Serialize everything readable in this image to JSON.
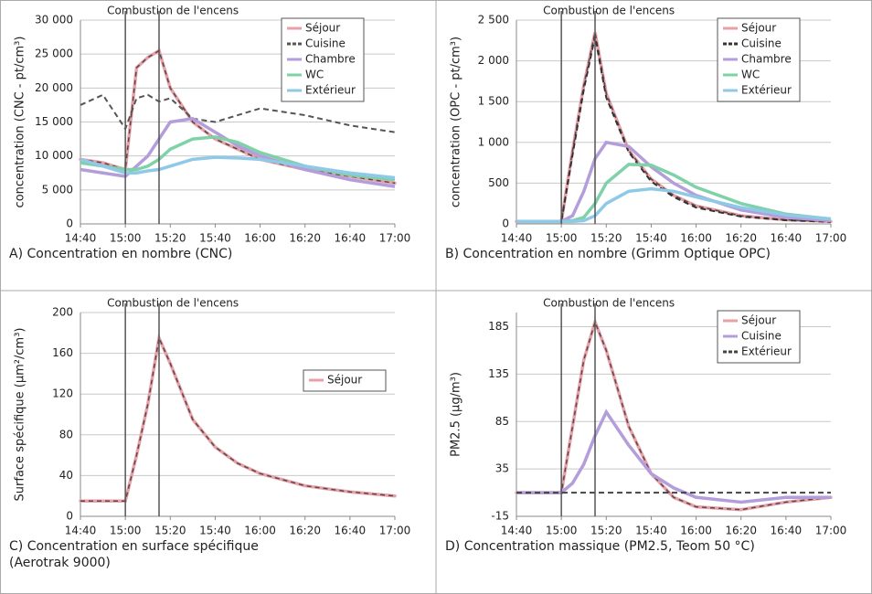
{
  "chart_data": [
    {
      "type": "line",
      "caption": [
        "A) Concentration en nombre (CNC)"
      ],
      "annotation": "Combustion de l'encens",
      "y_label": "concentration (CNC - pt/cm³)",
      "legend": "upper right",
      "grid": true,
      "x": [
        "14:40",
        "14:50",
        "15:00",
        "15:05",
        "15:10",
        "15:15",
        "15:20",
        "15:30",
        "15:40",
        "15:50",
        "16:00",
        "16:20",
        "16:40",
        "17:00"
      ],
      "xlim": [
        "14:40",
        "17:00"
      ],
      "xticks": [
        "14:40",
        "15:00",
        "15:20",
        "15:40",
        "16:00",
        "16:20",
        "16:40",
        "17:00"
      ],
      "ylim": [
        0,
        30000
      ],
      "yticks": [
        0,
        {
          "value": 5000,
          "label": "5 000"
        },
        {
          "value": 10000,
          "label": "10 000"
        },
        {
          "value": 15000,
          "label": "15 000"
        },
        {
          "value": 20000,
          "label": "20 000"
        },
        {
          "value": 25000,
          "label": "25 000"
        },
        {
          "value": 30000,
          "label": "30 000"
        }
      ],
      "vlines": [
        "15:00",
        "15:15"
      ],
      "series": [
        {
          "name": "Séjour",
          "color": "#e8a0a8",
          "style": "dotted",
          "values": [
            9500,
            9000,
            8000,
            23000,
            24500,
            25500,
            20000,
            15000,
            12500,
            11000,
            9500,
            8000,
            7000,
            6000
          ]
        },
        {
          "name": "Cuisine",
          "color": "#555555",
          "style": "dashed",
          "values": [
            17500,
            19000,
            14000,
            18500,
            19000,
            18000,
            18500,
            15500,
            15000,
            16000,
            17000,
            16000,
            14500,
            13500
          ]
        },
        {
          "name": "Chambre",
          "color": "#b39ddb",
          "style": "solid",
          "values": [
            8000,
            7500,
            7000,
            8500,
            10000,
            12500,
            15000,
            15500,
            13500,
            11500,
            10000,
            8000,
            6500,
            5500
          ]
        },
        {
          "name": "WC",
          "color": "#7fd1a8",
          "style": "solid",
          "values": [
            9000,
            8500,
            8000,
            8000,
            8500,
            9500,
            11000,
            12500,
            12800,
            12000,
            10500,
            8500,
            7200,
            6500
          ]
        },
        {
          "name": "Extérieur",
          "color": "#8ec9e8",
          "style": "solid",
          "values": [
            9500,
            8500,
            7500,
            7500,
            7800,
            8000,
            8500,
            9500,
            9800,
            9700,
            9500,
            8500,
            7500,
            6800
          ]
        }
      ]
    },
    {
      "type": "line",
      "caption": [
        "B) Concentration en nombre (Grimm Optique OPC)"
      ],
      "annotation": "Combustion de l'encens",
      "y_label": "concentration (OPC - pt/cm³)",
      "legend": "upper right",
      "grid": true,
      "x": [
        "14:40",
        "14:50",
        "15:00",
        "15:05",
        "15:10",
        "15:15",
        "15:20",
        "15:30",
        "15:40",
        "15:50",
        "16:00",
        "16:20",
        "16:40",
        "17:00"
      ],
      "xlim": [
        "14:40",
        "17:00"
      ],
      "xticks": [
        "14:40",
        "15:00",
        "15:20",
        "15:40",
        "16:00",
        "16:20",
        "16:40",
        "17:00"
      ],
      "ylim": [
        0,
        2500
      ],
      "yticks": [
        0,
        500,
        {
          "value": 1000,
          "label": "1 000"
        },
        {
          "value": 1500,
          "label": "1 500"
        },
        {
          "value": 2000,
          "label": "2 000"
        },
        {
          "value": 2500,
          "label": "2 500"
        }
      ],
      "vlines": [
        "15:00",
        "15:15"
      ],
      "series": [
        {
          "name": "Séjour",
          "color": "#e8a0a8",
          "style": "dotted",
          "values": [
            30,
            30,
            30,
            900,
            1700,
            2350,
            1600,
            900,
            550,
            350,
            220,
            100,
            50,
            30
          ]
        },
        {
          "name": "Cuisine",
          "color": "#333333",
          "style": "dashed",
          "values": [
            30,
            30,
            30,
            850,
            1650,
            2300,
            1550,
            880,
            520,
            330,
            200,
            90,
            45,
            25
          ]
        },
        {
          "name": "Chambre",
          "color": "#b39ddb",
          "style": "solid",
          "values": [
            30,
            30,
            30,
            100,
            400,
            800,
            1000,
            950,
            700,
            500,
            350,
            170,
            80,
            40
          ]
        },
        {
          "name": "WC",
          "color": "#7fd1a8",
          "style": "solid",
          "values": [
            30,
            30,
            30,
            40,
            80,
            250,
            500,
            730,
            720,
            600,
            450,
            250,
            120,
            60
          ]
        },
        {
          "name": "Extérieur",
          "color": "#8ec9e8",
          "style": "solid",
          "values": [
            30,
            30,
            30,
            30,
            40,
            100,
            250,
            400,
            430,
            400,
            330,
            200,
            110,
            60
          ]
        }
      ]
    },
    {
      "type": "line",
      "caption": [
        "C) Concentration en surface spécifique",
        "(Aerotrak 9000)"
      ],
      "annotation": "Combustion de l'encens",
      "y_label": "Surface spécifique (µm²/cm³)",
      "legend": "right",
      "grid": true,
      "x": [
        "14:40",
        "14:50",
        "15:00",
        "15:05",
        "15:10",
        "15:15",
        "15:20",
        "15:30",
        "15:40",
        "15:50",
        "16:00",
        "16:20",
        "16:40",
        "17:00"
      ],
      "xlim": [
        "14:40",
        "17:00"
      ],
      "xticks": [
        "14:40",
        "15:00",
        "15:20",
        "15:40",
        "16:00",
        "16:20",
        "16:40",
        "17:00"
      ],
      "ylim": [
        0,
        200
      ],
      "yticks": [
        0,
        40,
        80,
        120,
        160,
        200
      ],
      "vlines": [
        "15:00",
        "15:15"
      ],
      "series": [
        {
          "name": "Séjour",
          "color": "#e8a0a8",
          "style": "dotted",
          "values": [
            15,
            15,
            15,
            60,
            110,
            175,
            150,
            95,
            68,
            52,
            42,
            30,
            24,
            20
          ]
        }
      ]
    },
    {
      "type": "line",
      "caption": [
        "D) Concentration massique (PM2.5, Teom 50 °C)"
      ],
      "annotation": "Combustion de l'encens",
      "y_label": "PM2.5 (µg/m³)",
      "legend": "upper right",
      "grid": true,
      "x": [
        "14:40",
        "14:50",
        "15:00",
        "15:05",
        "15:10",
        "15:15",
        "15:20",
        "15:30",
        "15:40",
        "15:50",
        "16:00",
        "16:20",
        "16:40",
        "17:00"
      ],
      "xlim": [
        "14:40",
        "17:00"
      ],
      "xticks": [
        "14:40",
        "15:00",
        "15:20",
        "15:40",
        "16:00",
        "16:20",
        "16:40",
        "17:00"
      ],
      "ylim": [
        -15,
        200
      ],
      "yticks": [
        -15,
        35,
        85,
        135,
        185
      ],
      "vlines": [
        "15:00",
        "15:15"
      ],
      "series": [
        {
          "name": "Séjour",
          "color": "#e8a0a8",
          "style": "dotted",
          "values": [
            10,
            10,
            10,
            80,
            150,
            190,
            160,
            80,
            30,
            5,
            -5,
            -8,
            0,
            5
          ]
        },
        {
          "name": "Cuisine",
          "color": "#b39ddb",
          "style": "solid",
          "values": [
            10,
            10,
            10,
            20,
            40,
            70,
            95,
            60,
            30,
            15,
            5,
            0,
            5,
            5
          ]
        },
        {
          "name": "Extérieur",
          "color": "#444444",
          "style": "dashed",
          "values": [
            10,
            10,
            10,
            10,
            10,
            10,
            10,
            10,
            10,
            10,
            10,
            10,
            10,
            10
          ]
        }
      ]
    }
  ]
}
